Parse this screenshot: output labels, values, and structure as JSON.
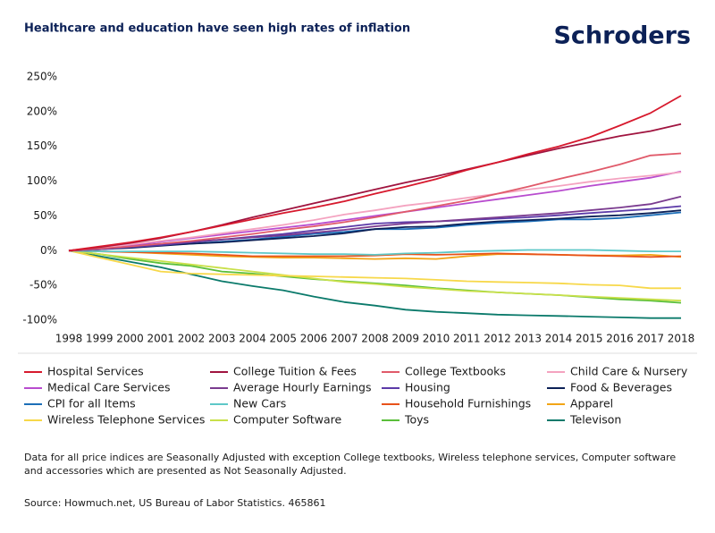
{
  "chart_data": {
    "type": "line",
    "title": "Healthcare and education have seen high rates of inflation",
    "brand": "Schroders",
    "note": "Data for all price indices are Seasonally Adjusted with exception College textbooks, Wireless telephone services, Computer software and accessories which are presented as Not Seasonally Adjusted.",
    "source": "Source: Howmuch.net, US Bureau of Labor Statistics. 465861",
    "x": [
      1998,
      1999,
      2000,
      2001,
      2002,
      2003,
      2004,
      2005,
      2006,
      2007,
      2008,
      2009,
      2010,
      2011,
      2012,
      2013,
      2014,
      2015,
      2016,
      2017,
      2018
    ],
    "xlim": [
      1998,
      2018
    ],
    "xticks": [
      1998,
      1999,
      2000,
      2001,
      2002,
      2003,
      2004,
      2005,
      2006,
      2007,
      2008,
      2009,
      2010,
      2011,
      2012,
      2013,
      2014,
      2015,
      2016,
      2017,
      2018
    ],
    "ylim": [
      -100,
      250
    ],
    "yticks": [
      {
        "value": -100,
        "label": "-100%"
      },
      {
        "value": -50,
        "label": "-50%"
      },
      {
        "value": 0,
        "label": "0%"
      },
      {
        "value": 50,
        "label": "50%"
      },
      {
        "value": 100,
        "label": "100%"
      },
      {
        "value": 150,
        "label": "150%"
      },
      {
        "value": 200,
        "label": "200%"
      },
      {
        "value": 250,
        "label": "250%"
      }
    ],
    "series": [
      {
        "name": "Hospital Services",
        "color": "#d7192d",
        "values": [
          0,
          6,
          12,
          19,
          27,
          36,
          45,
          54,
          62,
          71,
          82,
          92,
          103,
          116,
          127,
          139,
          150,
          163,
          180,
          198,
          223
        ]
      },
      {
        "name": "College Tuition & Fees",
        "color": "#a0143f",
        "values": [
          0,
          5,
          11,
          18,
          27,
          37,
          48,
          58,
          68,
          78,
          88,
          98,
          107,
          117,
          127,
          137,
          147,
          156,
          165,
          172,
          182
        ]
      },
      {
        "name": "College Textbooks",
        "color": "#e05a6a",
        "values": [
          0,
          3,
          6,
          10,
          14,
          19,
          24,
          30,
          35,
          41,
          48,
          56,
          64,
          72,
          82,
          92,
          103,
          113,
          124,
          137,
          140
        ]
      },
      {
        "name": "Child Care & Nursery",
        "color": "#f4a3c0",
        "values": [
          0,
          4,
          9,
          14,
          19,
          25,
          31,
          37,
          44,
          52,
          58,
          65,
          70,
          76,
          82,
          88,
          93,
          99,
          104,
          108,
          113
        ]
      },
      {
        "name": "Medical Care Services",
        "color": "#b84ccf",
        "values": [
          0,
          4,
          8,
          13,
          18,
          23,
          28,
          33,
          38,
          44,
          50,
          56,
          62,
          68,
          74,
          80,
          86,
          93,
          99,
          105,
          114
        ]
      },
      {
        "name": "Average Hourly Earnings",
        "color": "#7a3b8f",
        "values": [
          0,
          3,
          7,
          10,
          13,
          16,
          19,
          22,
          26,
          30,
          35,
          39,
          42,
          45,
          48,
          51,
          54,
          58,
          62,
          67,
          78
        ]
      },
      {
        "name": "Housing",
        "color": "#5c3aa8",
        "values": [
          0,
          2,
          5,
          8,
          12,
          16,
          20,
          24,
          29,
          34,
          39,
          41,
          42,
          44,
          46,
          48,
          51,
          54,
          57,
          60,
          64
        ]
      },
      {
        "name": "Food & Beverages",
        "color": "#0c2157",
        "values": [
          0,
          2,
          4,
          7,
          10,
          12,
          15,
          18,
          21,
          25,
          31,
          34,
          35,
          39,
          42,
          44,
          46,
          49,
          51,
          54,
          58
        ]
      },
      {
        "name": "CPI for all Items",
        "color": "#1d6fb8",
        "values": [
          0,
          2,
          5,
          8,
          10,
          13,
          16,
          20,
          24,
          27,
          31,
          31,
          33,
          37,
          40,
          42,
          45,
          45,
          47,
          51,
          55
        ]
      },
      {
        "name": "New Cars",
        "color": "#5ec8c8",
        "values": [
          0,
          -1,
          -1,
          -1,
          -1,
          -2,
          -3,
          -4,
          -5,
          -5,
          -6,
          -4,
          -3,
          -1,
          0,
          1,
          1,
          1,
          0,
          -1,
          -1
        ]
      },
      {
        "name": "Household Furnishings",
        "color": "#e8521a",
        "values": [
          0,
          -1,
          -2,
          -3,
          -4,
          -6,
          -8,
          -8,
          -8,
          -8,
          -7,
          -5,
          -6,
          -5,
          -4,
          -5,
          -6,
          -7,
          -8,
          -9,
          -8
        ]
      },
      {
        "name": "Apparel",
        "color": "#f2a516",
        "values": [
          0,
          -1,
          -2,
          -4,
          -6,
          -8,
          -9,
          -10,
          -10,
          -11,
          -12,
          -11,
          -12,
          -8,
          -5,
          -5,
          -6,
          -7,
          -7,
          -6,
          -9
        ]
      },
      {
        "name": "Wireless Telephone Services",
        "color": "#f7d84a",
        "values": [
          0,
          -10,
          -20,
          -30,
          -33,
          -34,
          -35,
          -36,
          -37,
          -38,
          -39,
          -40,
          -42,
          -44,
          -45,
          -46,
          -47,
          -49,
          -50,
          -54,
          -54
        ]
      },
      {
        "name": "Computer Software",
        "color": "#c9e04a",
        "values": [
          0,
          -5,
          -10,
          -15,
          -20,
          -25,
          -30,
          -35,
          -40,
          -45,
          -48,
          -52,
          -55,
          -58,
          -60,
          -62,
          -64,
          -66,
          -68,
          -70,
          -72
        ]
      },
      {
        "name": "Toys",
        "color": "#5abf3a",
        "values": [
          0,
          -5,
          -12,
          -18,
          -22,
          -30,
          -33,
          -37,
          -41,
          -44,
          -47,
          -50,
          -54,
          -57,
          -60,
          -62,
          -64,
          -67,
          -70,
          -72,
          -75
        ]
      },
      {
        "name": "Televison",
        "color": "#0b7a6b",
        "values": [
          0,
          -8,
          -16,
          -24,
          -34,
          -44,
          -51,
          -57,
          -66,
          -74,
          -79,
          -85,
          -88,
          -90,
          -92,
          -93,
          -94,
          -95,
          -96,
          -97,
          -97
        ]
      }
    ]
  }
}
